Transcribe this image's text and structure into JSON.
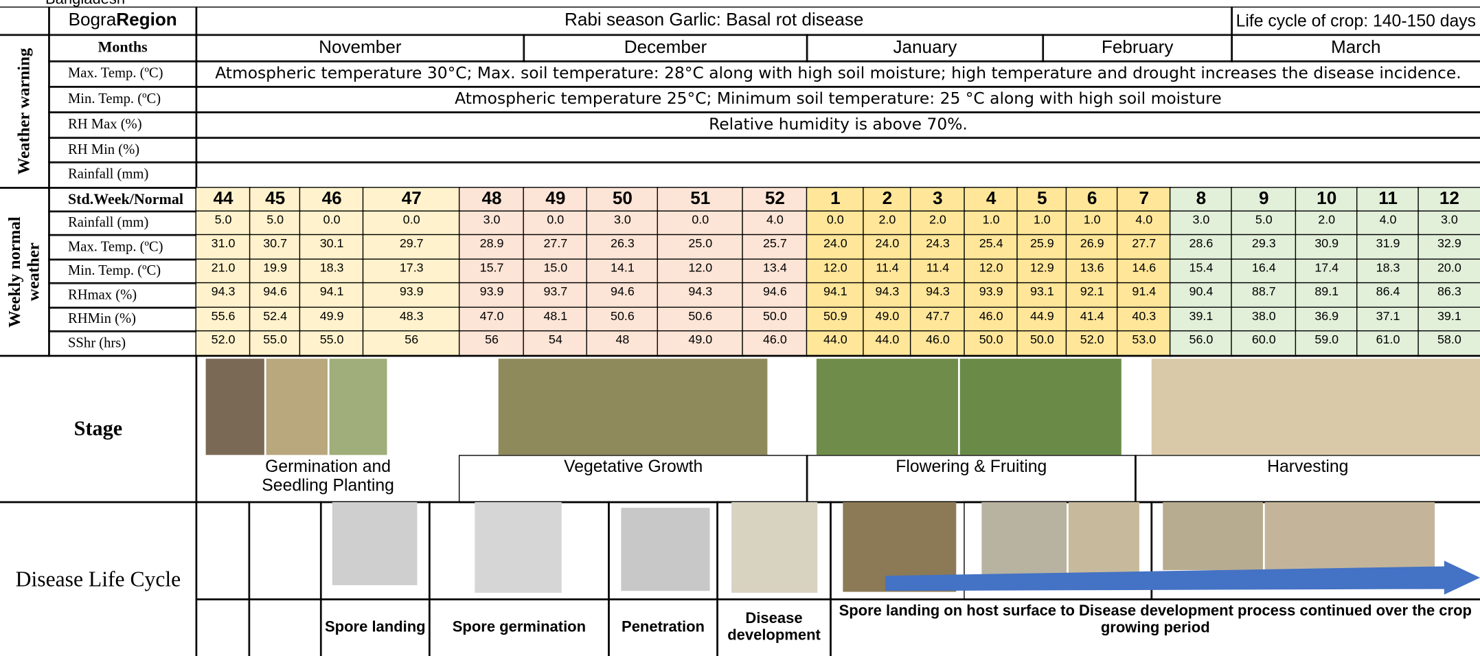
{
  "top_note": "Bangladesh",
  "header": {
    "region_name": "Bogra",
    "region_word": "Region",
    "title": "Rabi season Garlic: Basal rot disease",
    "life_cycle": "Life cycle of crop: 140-150 days"
  },
  "weather_warning": {
    "label": "Weather warning",
    "months_label": "Months",
    "months": [
      "November",
      "December",
      "January",
      "February",
      "March"
    ],
    "rows": [
      {
        "label": "Max. Temp. (ºC)",
        "text": "Atmospheric temperature 30°C; Max. soil temperature: 28°C along with high soil moisture; high temperature and drought increases the disease incidence."
      },
      {
        "label": "Min. Temp. (ºC)",
        "text": "Atmospheric temperature 25°C; Minimum soil temperature: 25 °C along with high soil moisture"
      },
      {
        "label": "RH Max (%)",
        "text": "Relative humidity is above 70%."
      },
      {
        "label": "RH Min (%)"
      },
      {
        "label": "Rainfall (mm)"
      }
    ]
  },
  "weekly": {
    "label": "Weekly normal weather",
    "weeks_label": "Std.Week/Normal",
    "weeks": [
      44,
      45,
      46,
      47,
      48,
      49,
      50,
      51,
      52,
      1,
      2,
      3,
      4,
      5,
      6,
      7,
      8,
      9,
      10,
      11,
      12
    ],
    "rows": [
      {
        "label": "Rainfall (mm)",
        "values": [
          "5.0",
          "5.0",
          "0.0",
          "0.0",
          "3.0",
          "0.0",
          "3.0",
          "0.0",
          "4.0",
          "0.0",
          "2.0",
          "2.0",
          "1.0",
          "1.0",
          "1.0",
          "4.0",
          "3.0",
          "5.0",
          "2.0",
          "4.0",
          "3.0"
        ]
      },
      {
        "label": "Max. Temp. (ºC)",
        "values": [
          "31.0",
          "30.7",
          "30.1",
          "29.7",
          "28.9",
          "27.7",
          "26.3",
          "25.0",
          "25.7",
          "24.0",
          "24.0",
          "24.3",
          "25.4",
          "25.9",
          "26.9",
          "27.7",
          "28.6",
          "29.3",
          "30.9",
          "31.9",
          "32.9"
        ]
      },
      {
        "label": "Min. Temp. (ºC)",
        "values": [
          "21.0",
          "19.9",
          "18.3",
          "17.3",
          "15.7",
          "15.0",
          "14.1",
          "12.0",
          "13.4",
          "12.0",
          "11.4",
          "11.4",
          "12.0",
          "12.9",
          "13.6",
          "14.6",
          "15.4",
          "16.4",
          "17.4",
          "18.3",
          "20.0"
        ]
      },
      {
        "label": "RHmax (%)",
        "values": [
          "94.3",
          "94.6",
          "94.1",
          "93.9",
          "93.9",
          "93.7",
          "94.6",
          "94.3",
          "94.6",
          "94.1",
          "94.3",
          "94.3",
          "93.9",
          "93.1",
          "92.1",
          "91.4",
          "90.4",
          "88.7",
          "89.1",
          "86.4",
          "86.3"
        ]
      },
      {
        "label": "RHMin (%)",
        "values": [
          "55.6",
          "52.4",
          "49.9",
          "48.3",
          "47.0",
          "48.1",
          "50.6",
          "50.6",
          "50.0",
          "50.9",
          "49.0",
          "47.7",
          "46.0",
          "44.9",
          "41.4",
          "40.3",
          "39.1",
          "38.0",
          "36.9",
          "37.1",
          "39.1"
        ]
      },
      {
        "label": "SShr (hrs)",
        "values": [
          "52.0",
          "55.0",
          "55.0",
          "56",
          "56",
          "54",
          "48",
          "49.0",
          "46.0",
          "44.0",
          "44.0",
          "46.0",
          "50.0",
          "50.0",
          "52.0",
          "53.0",
          "56.0",
          "60.0",
          "59.0",
          "61.0",
          "58.0"
        ]
      }
    ]
  },
  "stage": {
    "label": "Stage",
    "stages": [
      "Germination and Seedling Planting",
      "Vegetative Growth",
      "Flowering & Fruiting",
      "Harvesting"
    ]
  },
  "disease": {
    "label": "Disease Life Cycle",
    "steps": [
      "Spore landing",
      "Spore germination",
      "Penetration",
      "Disease development",
      "Spore landing on host surface to Disease development process continued over the crop growing period"
    ]
  }
}
